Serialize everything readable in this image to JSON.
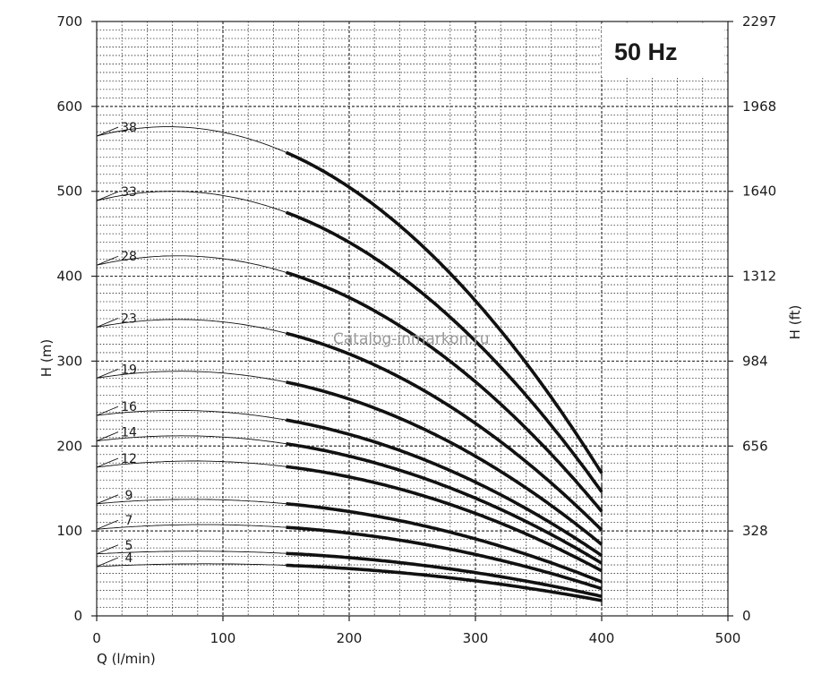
{
  "chart_data": {
    "type": "line",
    "frequency_label": "50 Hz",
    "xlabel": "Q (l/min)",
    "ylabel": "H (m)",
    "y2label": "H (ft)",
    "xlim": [
      0,
      500
    ],
    "ylim": [
      0,
      700
    ],
    "x_ticks": [
      "0",
      "100",
      "200",
      "300",
      "400",
      "500"
    ],
    "y_ticks": [
      "0",
      "100",
      "200",
      "300",
      "400",
      "500",
      "600",
      "700"
    ],
    "y2_ticks": [
      "0",
      "328",
      "656",
      "984",
      "1312",
      "1640",
      "1968",
      "2297"
    ],
    "grid": true,
    "watermark": "Catalog-inmarkon.ru",
    "recommended_range": [
      150,
      400
    ],
    "series": [
      {
        "name": "38",
        "shut_off": 565,
        "peak": 576,
        "end": 168
      },
      {
        "name": "33",
        "shut_off": 489,
        "peak": 500,
        "end": 146
      },
      {
        "name": "28",
        "shut_off": 413,
        "peak": 424,
        "end": 123
      },
      {
        "name": "23",
        "shut_off": 340,
        "peak": 349,
        "end": 101
      },
      {
        "name": "19",
        "shut_off": 280,
        "peak": 288,
        "end": 84
      },
      {
        "name": "16",
        "shut_off": 236,
        "peak": 242,
        "end": 71
      },
      {
        "name": "14",
        "shut_off": 206,
        "peak": 212,
        "end": 62
      },
      {
        "name": "12",
        "shut_off": 175,
        "peak": 182,
        "end": 53
      },
      {
        "name": "9",
        "shut_off": 132,
        "peak": 137,
        "end": 40
      },
      {
        "name": "7",
        "shut_off": 102,
        "peak": 107,
        "end": 32
      },
      {
        "name": "5",
        "shut_off": 73,
        "peak": 76,
        "end": 23
      },
      {
        "name": "4",
        "shut_off": 58,
        "peak": 61,
        "end": 18
      }
    ]
  }
}
